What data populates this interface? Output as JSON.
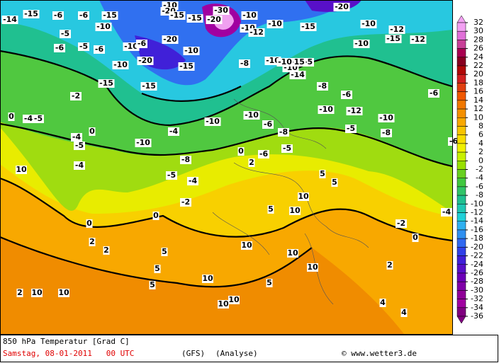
{
  "map": {
    "contour_labels": [
      -14,
      -15,
      -6,
      -6,
      -15,
      -10,
      -15,
      -20,
      -30,
      -15,
      -20,
      -20,
      -6,
      -5,
      -5,
      -6,
      -10,
      -6,
      -10,
      -10,
      -20,
      -15,
      -15,
      -15,
      -10,
      -10,
      -10,
      -12,
      -10,
      -15,
      -10,
      -12,
      -20,
      -12,
      -15,
      -10,
      -10,
      -8,
      -14,
      -10,
      -5,
      -15,
      -10,
      -8,
      -6,
      -4,
      -10,
      -10,
      -6,
      -8,
      -10,
      -12,
      -10,
      -6,
      -8,
      -6,
      -5,
      0,
      -5,
      -4,
      0,
      -2,
      -4,
      10,
      -5,
      -10,
      -5,
      -4,
      -4,
      -2,
      -5,
      -6,
      -8,
      0,
      2,
      5,
      10,
      5,
      10,
      5,
      0,
      -2,
      0,
      -4,
      0,
      2,
      5,
      5,
      10,
      5,
      10,
      10,
      5,
      10,
      10,
      10,
      10,
      10,
      2,
      2,
      2,
      4,
      4
    ],
    "legend": {
      "ticks": [
        32,
        30,
        28,
        26,
        24,
        22,
        20,
        18,
        16,
        14,
        12,
        10,
        8,
        6,
        4,
        2,
        0,
        -2,
        -4,
        -6,
        -8,
        -10,
        -12,
        -14,
        -16,
        -18,
        -20,
        -22,
        -24,
        -26,
        -28,
        -30,
        -32,
        -34,
        -36
      ],
      "colors": [
        "#f2a0f2",
        "#e070d8",
        "#c84098",
        "#a80050",
        "#880020",
        "#b00808",
        "#d02020",
        "#e04010",
        "#f05800",
        "#f07800",
        "#f49000",
        "#f8a800",
        "#f8c400",
        "#f8dc00",
        "#f0f000",
        "#c8f000",
        "#98e000",
        "#68d020",
        "#40c840",
        "#30c468",
        "#20c090",
        "#20c8b4",
        "#20d0d8",
        "#30b0f0",
        "#3090f0",
        "#3068f0",
        "#3040e8",
        "#4020d8",
        "#5810c8",
        "#6c00b8",
        "#8000a8",
        "#900098",
        "#a000a0",
        "#800080"
      ]
    },
    "footer": {
      "title": "850 hPa Temperatur [Grad C]",
      "date": "Samstag, 08-01-2011   00 UTC",
      "model": "(GFS)",
      "run": "(Analyse)",
      "credit": "© www.wetter3.de"
    }
  }
}
